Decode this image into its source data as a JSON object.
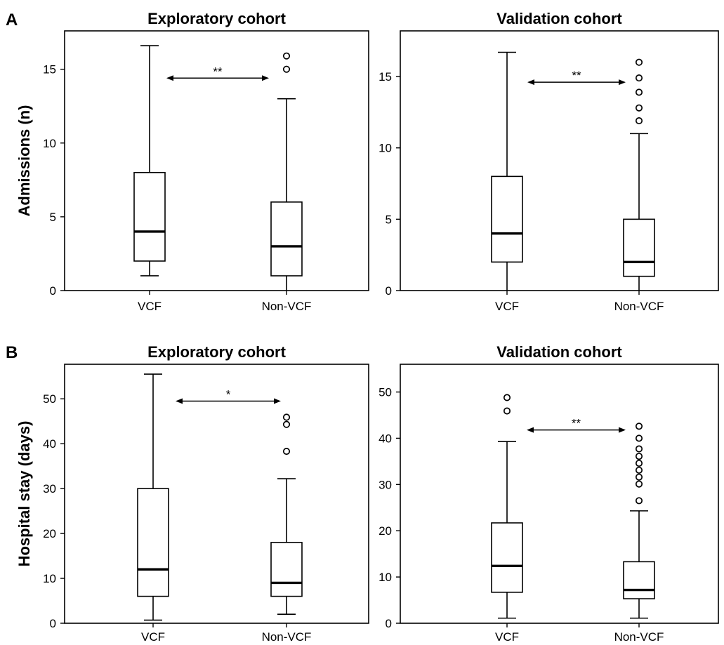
{
  "chart_data": [
    {
      "panel": "A",
      "title": "Exploratory cohort",
      "ylabel": "Admissions (n)",
      "type": "box",
      "ylim": [
        0,
        17.6
      ],
      "yticks": [
        0,
        5,
        10,
        15
      ],
      "categories": [
        "VCF",
        "Non-VCF"
      ],
      "boxes": [
        {
          "min": 1,
          "q1": 2,
          "median": 4,
          "q3": 8,
          "max": 16.6,
          "outliers": []
        },
        {
          "min": 0,
          "q1": 1,
          "median": 3,
          "q3": 6,
          "max": 13,
          "outliers": [
            15,
            15.9
          ]
        }
      ],
      "annotation": "**"
    },
    {
      "panel": "",
      "title": "Validation cohort",
      "ylabel": "",
      "type": "box",
      "ylim": [
        0,
        18.2
      ],
      "yticks": [
        0,
        5,
        10,
        15
      ],
      "categories": [
        "VCF",
        "Non-VCF"
      ],
      "boxes": [
        {
          "min": 0,
          "q1": 2,
          "median": 4,
          "q3": 8,
          "max": 16.7,
          "outliers": []
        },
        {
          "min": 0,
          "q1": 1,
          "median": 2,
          "q3": 5,
          "max": 11,
          "outliers": [
            11.9,
            12.8,
            13.9,
            14.9,
            16
          ]
        }
      ],
      "annotation": "**"
    },
    {
      "panel": "B",
      "title": "Exploratory cohort",
      "ylabel": "Hospital stay (days)",
      "type": "box",
      "ylim": [
        0,
        57.7
      ],
      "yticks": [
        0,
        10,
        20,
        30,
        40,
        50
      ],
      "categories": [
        "VCF",
        "Non-VCF"
      ],
      "boxes": [
        {
          "min": 0.7,
          "q1": 6,
          "median": 12,
          "q3": 30,
          "max": 55.5,
          "outliers": []
        },
        {
          "min": 2,
          "q1": 6,
          "median": 9,
          "q3": 18,
          "max": 32.2,
          "outliers": [
            38.3,
            44.3,
            45.9
          ]
        }
      ],
      "annotation": "*"
    },
    {
      "panel": "",
      "title": "Validation cohort",
      "ylabel": "",
      "type": "box",
      "ylim": [
        0,
        56
      ],
      "yticks": [
        0,
        10,
        20,
        30,
        40,
        50
      ],
      "categories": [
        "VCF",
        "Non-VCF"
      ],
      "boxes": [
        {
          "min": 1.1,
          "q1": 6.7,
          "median": 12.4,
          "q3": 21.7,
          "max": 39.3,
          "outliers": [
            45.9,
            48.8
          ]
        },
        {
          "min": 1.1,
          "q1": 5.3,
          "median": 7.2,
          "q3": 13.3,
          "max": 24.3,
          "outliers": [
            26.5,
            30.1,
            31.6,
            33.1,
            34.6,
            36.1,
            37.7,
            40,
            42.6
          ]
        }
      ],
      "annotation": "**"
    }
  ]
}
